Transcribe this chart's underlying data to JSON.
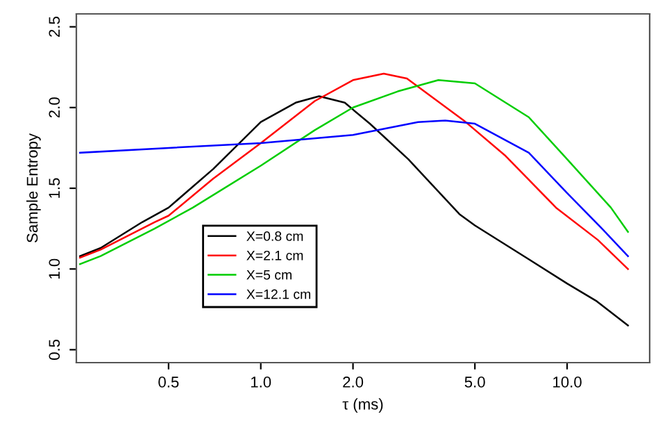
{
  "chart_data": {
    "type": "line",
    "xlabel": "τ (ms)",
    "ylabel": "Sample Entropy",
    "log": "x",
    "xlim": [
      0.25,
      18.6
    ],
    "ylim": [
      0.42,
      2.58
    ],
    "xticks": [
      0.5,
      {
        "value": 1,
        "label": "1.0"
      },
      {
        "value": 2,
        "label": "2.0"
      },
      {
        "value": 5,
        "label": "5.0"
      },
      {
        "value": 10,
        "label": "10.0"
      }
    ],
    "yticks": [
      0.5,
      {
        "value": 1,
        "label": "1.0"
      },
      1.5,
      {
        "value": 2,
        "label": "2.0"
      },
      2.5
    ],
    "grid": false,
    "legend": "bottom",
    "marker": "none",
    "line_style": "solid",
    "series": [
      {
        "name": "X=0.8 cm",
        "color": "#000000",
        "x": [
          0.257,
          0.3,
          0.41,
          0.5,
          0.7,
          1.0,
          1.3,
          1.55,
          1.88,
          2.27,
          3.03,
          4.45,
          5.0,
          7.5,
          10.0,
          12.5,
          15.8
        ],
        "values": [
          1.08,
          1.13,
          1.29,
          1.38,
          1.62,
          1.91,
          2.03,
          2.07,
          2.03,
          1.9,
          1.68,
          1.34,
          1.27,
          1.06,
          0.91,
          0.8,
          0.65
        ]
      },
      {
        "name": "X=2.1 cm",
        "color": "#ff0000",
        "x": [
          0.257,
          0.3,
          0.45,
          0.5,
          0.7,
          1.0,
          1.5,
          2.0,
          2.52,
          3.0,
          4.6,
          6.3,
          9.2,
          12.6,
          15.8
        ],
        "values": [
          1.07,
          1.12,
          1.29,
          1.33,
          1.56,
          1.78,
          2.04,
          2.17,
          2.21,
          2.18,
          1.92,
          1.7,
          1.38,
          1.18,
          1.0
        ]
      },
      {
        "name": "X=5 cm",
        "color": "#00cd00",
        "x": [
          0.257,
          0.3,
          0.45,
          0.6,
          1.0,
          1.5,
          2.0,
          2.8,
          3.8,
          5.0,
          7.5,
          10.0,
          13.9,
          15.8
        ],
        "values": [
          1.03,
          1.08,
          1.25,
          1.38,
          1.64,
          1.86,
          2.0,
          2.1,
          2.17,
          2.15,
          1.94,
          1.68,
          1.38,
          1.23
        ]
      },
      {
        "name": "X=12.1 cm",
        "color": "#0000ff",
        "x": [
          0.257,
          0.5,
          1.0,
          2.0,
          3.26,
          4.0,
          5.0,
          7.5,
          10.0,
          13.0,
          15.8
        ],
        "values": [
          1.72,
          1.75,
          1.78,
          1.83,
          1.91,
          1.92,
          1.9,
          1.72,
          1.47,
          1.25,
          1.08
        ]
      }
    ]
  }
}
